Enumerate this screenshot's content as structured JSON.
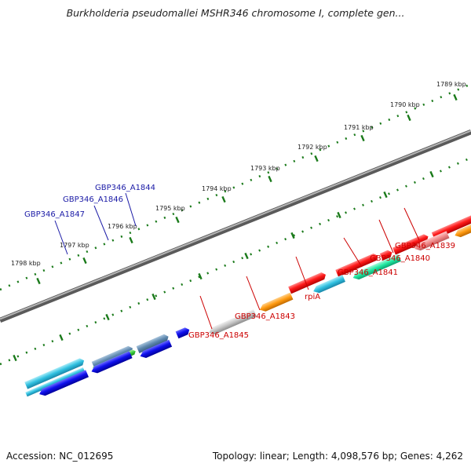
{
  "title": "Burkholderia pseudomallei MSHR346 chromosome I, complete gen...",
  "footer": {
    "accession": "Accession: NC_012695",
    "topology": "Topology: linear; Length: 4,098,576 bp; Genes: 4,262"
  },
  "ticks": [
    "1789 kbp",
    "1790 kbp",
    "1791 kbp",
    "1792 kbp",
    "1793 kbp",
    "1794 kbp",
    "1795 kbp",
    "1796 kbp",
    "1797 kbp",
    "1798 kbp"
  ],
  "labels": {
    "top": [
      "GBP346_A1847",
      "GBP346_A1846",
      "GBP346_A1844"
    ],
    "bottom": [
      "GBP346_A1845",
      "GBP346_A1843",
      "rpiA",
      "GBP346_A1841",
      "GBP346_A1840",
      "GBP346_A1839"
    ]
  },
  "colors": {
    "top_label": "#1a1aa6",
    "bottom_label": "#cc0000",
    "backbone": "#7a7a7a",
    "tick": "#1a7a1a"
  }
}
